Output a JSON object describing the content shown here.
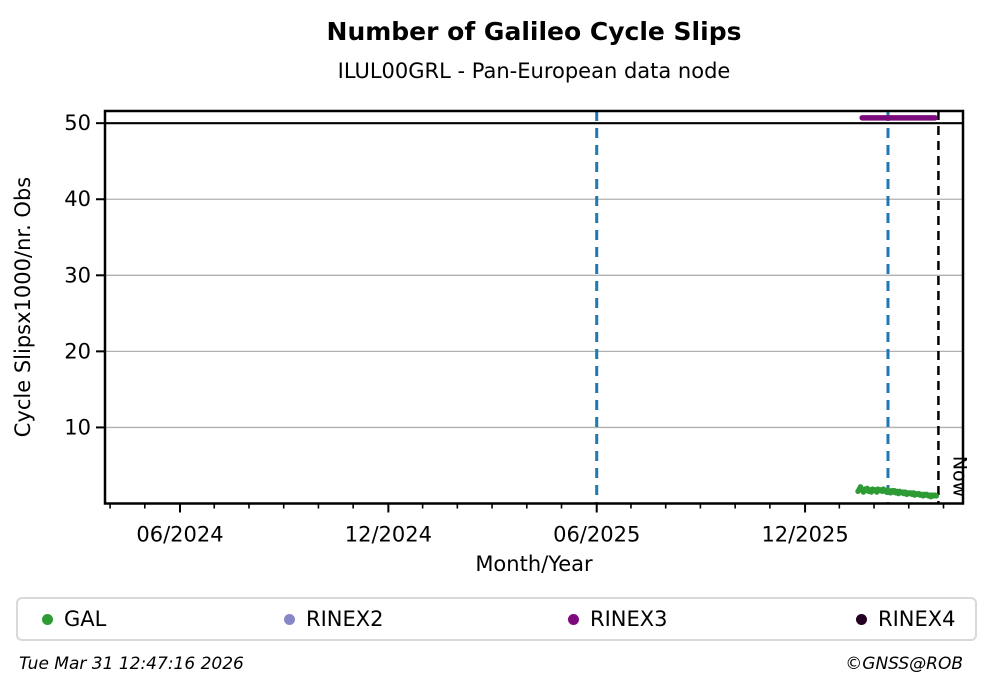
{
  "footer": {
    "timestamp": "Tue Mar 31 12:47:16 2026",
    "copyright": "©GNSS@ROB"
  },
  "legend": {
    "items": [
      {
        "label": "GAL",
        "color": "#2e9b35"
      },
      {
        "label": "RINEX2",
        "color": "#8787c8"
      },
      {
        "label": "RINEX3",
        "color": "#7d0a7d"
      },
      {
        "label": "RINEX4",
        "color": "#230023"
      }
    ]
  },
  "chart_data": {
    "type": "scatter",
    "title": "Number of Galileo Cycle Slips",
    "subtitle": "ILUL00GRL - Pan-European data node",
    "xlabel": "Month/Year",
    "ylabel": "Cycle Slipsx1000/nr. Obs",
    "xlim": [
      2024.237,
      2026.296
    ],
    "ylim": [
      0,
      51.6
    ],
    "grid": true,
    "grid_color": "#b0b0b0",
    "legend_position": "bottom",
    "yticks": [
      {
        "v": 10,
        "label": "10"
      },
      {
        "v": 20,
        "label": "20"
      },
      {
        "v": 30,
        "label": "30"
      },
      {
        "v": 40,
        "label": "40"
      },
      {
        "v": 50,
        "label": "50"
      }
    ],
    "xticks": [
      {
        "v": 2024.417,
        "label": "06/2024"
      },
      {
        "v": 2024.917,
        "label": "12/2024"
      },
      {
        "v": 2025.417,
        "label": "06/2025"
      },
      {
        "v": 2025.917,
        "label": "12/2025"
      }
    ],
    "x_minor_step_years": 0.0833333,
    "hlines": [
      {
        "y": 50,
        "color": "#000000",
        "width": 2.2
      }
    ],
    "vlines": [
      {
        "x": 2025.417,
        "color": "#1f77b4",
        "dash": "10 7",
        "width": 3
      },
      {
        "x": 2026.116,
        "color": "#1f77b4",
        "dash": "10 7",
        "width": 3
      },
      {
        "x": 2026.237,
        "color": "#000000",
        "dash": "9 6",
        "width": 2.5,
        "label": "Now"
      }
    ],
    "series": [
      {
        "name": "GAL",
        "color": "#2e9b35",
        "style": "dots",
        "marker_radius": 2.7,
        "points": [
          [
            2026.044,
            1.6
          ],
          [
            2026.047,
            1.9
          ],
          [
            2026.05,
            2.2
          ],
          [
            2026.053,
            1.8
          ],
          [
            2026.057,
            1.5
          ],
          [
            2026.06,
            1.9
          ],
          [
            2026.063,
            1.7
          ],
          [
            2026.066,
            2.0
          ],
          [
            2026.07,
            1.6
          ],
          [
            2026.073,
            1.8
          ],
          [
            2026.076,
            1.5
          ],
          [
            2026.079,
            1.9
          ],
          [
            2026.083,
            1.7
          ],
          [
            2026.086,
            1.8
          ],
          [
            2026.089,
            1.5
          ],
          [
            2026.092,
            1.9
          ],
          [
            2026.096,
            1.7
          ],
          [
            2026.099,
            1.8
          ],
          [
            2026.102,
            1.6
          ],
          [
            2026.105,
            1.9
          ],
          [
            2026.109,
            1.7
          ],
          [
            2026.112,
            1.5
          ],
          [
            2026.115,
            1.8
          ],
          [
            2026.118,
            1.6
          ],
          [
            2026.122,
            1.4
          ],
          [
            2026.125,
            1.7
          ],
          [
            2026.128,
            1.5
          ],
          [
            2026.131,
            1.7
          ],
          [
            2026.135,
            1.4
          ],
          [
            2026.138,
            1.6
          ],
          [
            2026.141,
            1.3
          ],
          [
            2026.144,
            1.6
          ],
          [
            2026.148,
            1.4
          ],
          [
            2026.151,
            1.5
          ],
          [
            2026.154,
            1.3
          ],
          [
            2026.157,
            1.5
          ],
          [
            2026.161,
            1.2
          ],
          [
            2026.164,
            1.4
          ],
          [
            2026.167,
            1.3
          ],
          [
            2026.17,
            1.4
          ],
          [
            2026.174,
            1.2
          ],
          [
            2026.177,
            1.4
          ],
          [
            2026.18,
            1.1
          ],
          [
            2026.183,
            1.3
          ],
          [
            2026.187,
            1.2
          ],
          [
            2026.19,
            1.3
          ],
          [
            2026.193,
            1.1
          ],
          [
            2026.196,
            1.2
          ],
          [
            2026.2,
            1.0
          ],
          [
            2026.203,
            1.2
          ],
          [
            2026.206,
            1.1
          ],
          [
            2026.209,
            1.2
          ],
          [
            2026.213,
            1.0
          ],
          [
            2026.216,
            1.1
          ],
          [
            2026.219,
            0.9
          ],
          [
            2026.222,
            1.1
          ],
          [
            2026.226,
            1.0
          ],
          [
            2026.229,
            1.1
          ],
          [
            2026.232,
            1.0
          ]
        ]
      },
      {
        "name": "RINEX2",
        "color": "#8787c8",
        "style": "dots",
        "points": []
      },
      {
        "name": "RINEX3",
        "color": "#7d0a7d",
        "style": "thickline",
        "line_width": 5.5,
        "points": [
          [
            2026.054,
            50.7
          ],
          [
            2026.229,
            50.7
          ]
        ]
      },
      {
        "name": "RINEX4",
        "color": "#230023",
        "style": "dots",
        "points": []
      }
    ]
  }
}
